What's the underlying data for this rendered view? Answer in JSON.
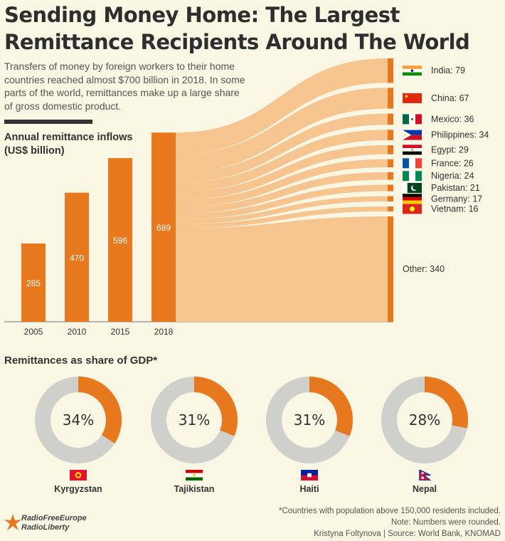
{
  "title": "Sending Money Home: The Largest Remittance Recipients Around The World",
  "intro": "Transfers of money by foreign workers to their home countries reached almost $700 billion in 2018. In some parts of the world, remittances make up a large share of gross domestic product.",
  "bar_subtitle": "Annual remittance inflows (US$ billion)",
  "gdp_title": "Remittances as share of GDP*",
  "chart_data": [
    {
      "type": "bar",
      "categories": [
        "2005",
        "2010",
        "2015",
        "2018"
      ],
      "values": [
        285,
        470,
        596,
        689
      ],
      "title": "Annual remittance inflows (US$ billion)",
      "color": "#e8781e"
    },
    {
      "type": "sankey",
      "source": "2018",
      "flows": [
        {
          "label": "India",
          "value": 79,
          "flag": "india"
        },
        {
          "label": "China",
          "value": 67,
          "flag": "china"
        },
        {
          "label": "Mexico",
          "value": 36,
          "flag": "mexico"
        },
        {
          "label": "Philippines",
          "value": 34,
          "flag": "philippines"
        },
        {
          "label": "Egypt",
          "value": 29,
          "flag": "egypt"
        },
        {
          "label": "France",
          "value": 26,
          "flag": "france"
        },
        {
          "label": "Nigeria",
          "value": 24,
          "flag": "nigeria"
        },
        {
          "label": "Pakistan",
          "value": 21,
          "flag": "pakistan"
        },
        {
          "label": "Germany",
          "value": 17,
          "flag": "germany"
        },
        {
          "label": "Vietnam",
          "value": 16,
          "flag": "vietnam"
        },
        {
          "label": "Other",
          "value": 340,
          "flag": ""
        }
      ],
      "flow_color": "#f6c48f"
    },
    {
      "type": "pie",
      "title": "Remittances as share of GDP*",
      "items": [
        {
          "country": "Kyrgyzstan",
          "value": 34,
          "label": "34%",
          "flag": "kyrgyzstan"
        },
        {
          "country": "Tajikistan",
          "value": 31,
          "label": "31%",
          "flag": "tajikistan"
        },
        {
          "country": "Haiti",
          "value": 31,
          "label": "31%",
          "flag": "haiti"
        },
        {
          "country": "Nepal",
          "value": 28,
          "label": "28%",
          "flag": "nepal"
        }
      ],
      "colors": {
        "share": "#e8781e",
        "rest": "#cfcfcb"
      }
    }
  ],
  "logo": {
    "line1": "RadioFreeEurope",
    "line2": "RadioLiberty",
    "icon": "rfe-rl-logo-icon"
  },
  "footnote": {
    "line1": "*Countries with population above 150,000 residents included.",
    "line2": "Note: Numbers were rounded.",
    "line3": "Kristyna Foltynova | Source: World Bank, KNOMAD"
  }
}
